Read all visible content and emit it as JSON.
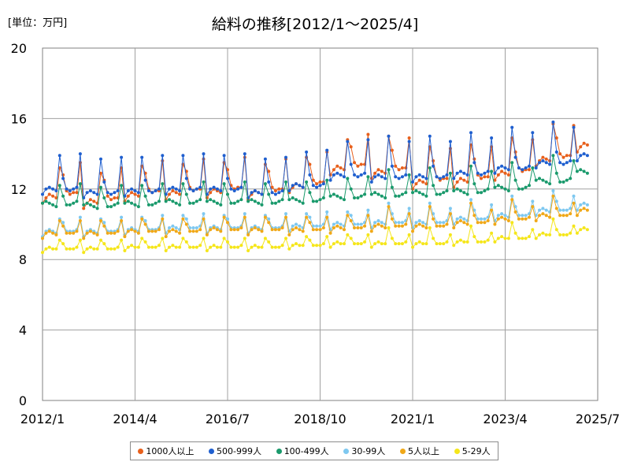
{
  "chart_data": {
    "type": "line",
    "title": "給料の推移[2012/1～2025/4]",
    "unit_label": "[単位：万円]",
    "xlabel": "",
    "ylabel": "",
    "ylim": [
      0,
      20
    ],
    "yticks": [
      0,
      4,
      8,
      12,
      16,
      20
    ],
    "xlim": [
      "2012-01",
      "2025-07"
    ],
    "xticks": [
      "2012/1",
      "2014/4",
      "2016/7",
      "2018/10",
      "2021/1",
      "2023/4",
      "2025/7"
    ],
    "grid": true,
    "legend_position": "bottom",
    "x_start": "2012-01",
    "x_end": "2025-04",
    "frequency": "monthly",
    "series": [
      {
        "name": "1000人以上",
        "color": "#e8601c",
        "months": [
          1,
          2,
          3,
          4,
          5,
          6,
          7,
          8,
          9,
          10,
          11,
          12
        ],
        "monthly_pattern": [
          11.2,
          11.5,
          11.7,
          11.6,
          11.5,
          13.2,
          12.8,
          11.9,
          11.7,
          11.8,
          11.8,
          13.5
        ],
        "annual_offset": [
          0,
          -0.3,
          0.1,
          0.2,
          0.3,
          0.2,
          0.6,
          1.6,
          1.4,
          0.8,
          0.9,
          1.3,
          2.1,
          2.9
        ]
      },
      {
        "name": "500-999人",
        "color": "#1f5fcf",
        "months": [
          1,
          2,
          3,
          4,
          5,
          6,
          7,
          8,
          9,
          10,
          11,
          12
        ],
        "monthly_pattern": [
          11.7,
          12.0,
          12.1,
          12.0,
          11.9,
          13.9,
          12.6,
          12.0,
          11.9,
          12.0,
          12.1,
          14.0
        ],
        "annual_offset": [
          0,
          -0.2,
          -0.1,
          0.0,
          0.0,
          -0.2,
          0.2,
          0.8,
          0.7,
          0.7,
          0.9,
          1.2,
          1.5,
          1.9
        ]
      },
      {
        "name": "100-499人",
        "color": "#1a9a6c",
        "months": [
          1,
          2,
          3,
          4,
          5,
          6,
          7,
          8,
          9,
          10,
          11,
          12
        ],
        "monthly_pattern": [
          11.2,
          11.3,
          11.2,
          11.1,
          11.0,
          12.2,
          11.6,
          11.1,
          11.1,
          11.2,
          11.3,
          12.3
        ],
        "annual_offset": [
          0,
          -0.1,
          0.0,
          0.1,
          0.1,
          0.1,
          0.2,
          0.4,
          0.5,
          0.6,
          0.7,
          0.9,
          1.3,
          1.8
        ]
      },
      {
        "name": "30-99人",
        "color": "#7ec8f0",
        "months": [
          1,
          2,
          3,
          4,
          5,
          6,
          7,
          8,
          9,
          10,
          11,
          12
        ],
        "monthly_pattern": [
          9.3,
          9.6,
          9.7,
          9.6,
          9.5,
          10.3,
          10.1,
          9.6,
          9.6,
          9.6,
          9.7,
          10.4
        ],
        "annual_offset": [
          0,
          0.0,
          0.1,
          0.2,
          0.2,
          0.2,
          0.3,
          0.4,
          0.5,
          0.5,
          0.7,
          0.9,
          1.2,
          1.5
        ]
      },
      {
        "name": "5人以上",
        "color": "#f0a818",
        "months": [
          1,
          2,
          3,
          4,
          5,
          6,
          7,
          8,
          9,
          10,
          11,
          12
        ],
        "monthly_pattern": [
          9.2,
          9.5,
          9.6,
          9.5,
          9.4,
          10.2,
          9.9,
          9.5,
          9.5,
          9.5,
          9.6,
          10.2
        ],
        "annual_offset": [
          0,
          0.0,
          0.1,
          0.1,
          0.2,
          0.2,
          0.2,
          0.3,
          0.4,
          0.4,
          0.6,
          0.8,
          1.0,
          1.3
        ]
      },
      {
        "name": "5-29人",
        "color": "#f5e61a",
        "months": [
          1,
          2,
          3,
          4,
          5,
          6,
          7,
          8,
          9,
          10,
          11,
          12
        ],
        "monthly_pattern": [
          8.4,
          8.6,
          8.7,
          8.6,
          8.6,
          9.1,
          8.9,
          8.6,
          8.6,
          8.6,
          8.7,
          9.1
        ],
        "annual_offset": [
          0,
          0.0,
          0.1,
          0.1,
          0.1,
          0.1,
          0.2,
          0.3,
          0.3,
          0.3,
          0.4,
          0.6,
          0.8,
          1.1
        ]
      }
    ]
  }
}
